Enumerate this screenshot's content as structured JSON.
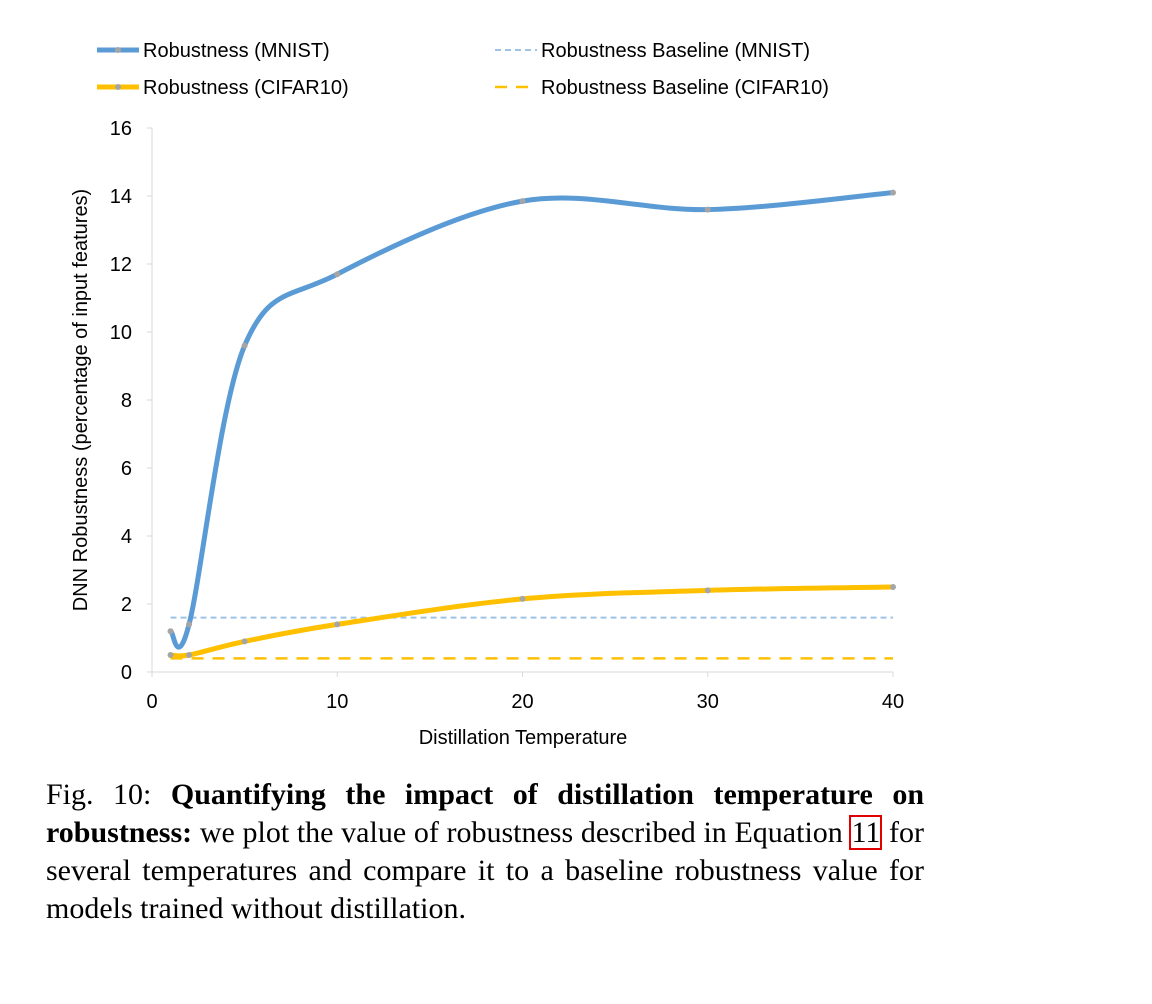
{
  "chart_data": {
    "type": "line",
    "x": [
      1,
      2,
      5,
      10,
      20,
      30,
      40
    ],
    "series": [
      {
        "name": "Robustness (MNIST)",
        "values": [
          1.2,
          1.4,
          9.6,
          11.7,
          13.85,
          13.6,
          14.1
        ],
        "color": "#5b9bd5",
        "style": "solid-smooth"
      },
      {
        "name": "Robustness (CIFAR10)",
        "values": [
          0.5,
          0.5,
          0.9,
          1.4,
          2.15,
          2.4,
          2.5
        ],
        "color": "#ffc000",
        "style": "solid-smooth"
      },
      {
        "name": "Robustness Baseline (MNIST)",
        "values": [
          1.6,
          1.6
        ],
        "x": [
          1,
          40
        ],
        "color": "#9dc3e6",
        "style": "dashed"
      },
      {
        "name": "Robustness Baseline (CIFAR10)",
        "values": [
          0.4,
          0.4
        ],
        "x": [
          1,
          40
        ],
        "color": "#ffc000",
        "style": "dashed"
      }
    ],
    "xlabel": "Distillation Temperature",
    "ylabel": "DNN Robustness (percentage of input features)",
    "xlim": [
      0,
      40
    ],
    "ylim": [
      0,
      16
    ],
    "xticks": [
      0,
      10,
      20,
      30,
      40
    ],
    "yticks": [
      0,
      2,
      4,
      6,
      8,
      10,
      12,
      14,
      16
    ],
    "grid": false,
    "legend_position": "top"
  },
  "caption": {
    "label": "Fig. 10:",
    "bold": "Quantifying the impact of distillation temperature on robustness:",
    "text1": "we plot the value of robustness described in Equation",
    "ref": "11",
    "text2": "for several temperatures and compare it to a baseline robustness value for models trained without distillation."
  }
}
